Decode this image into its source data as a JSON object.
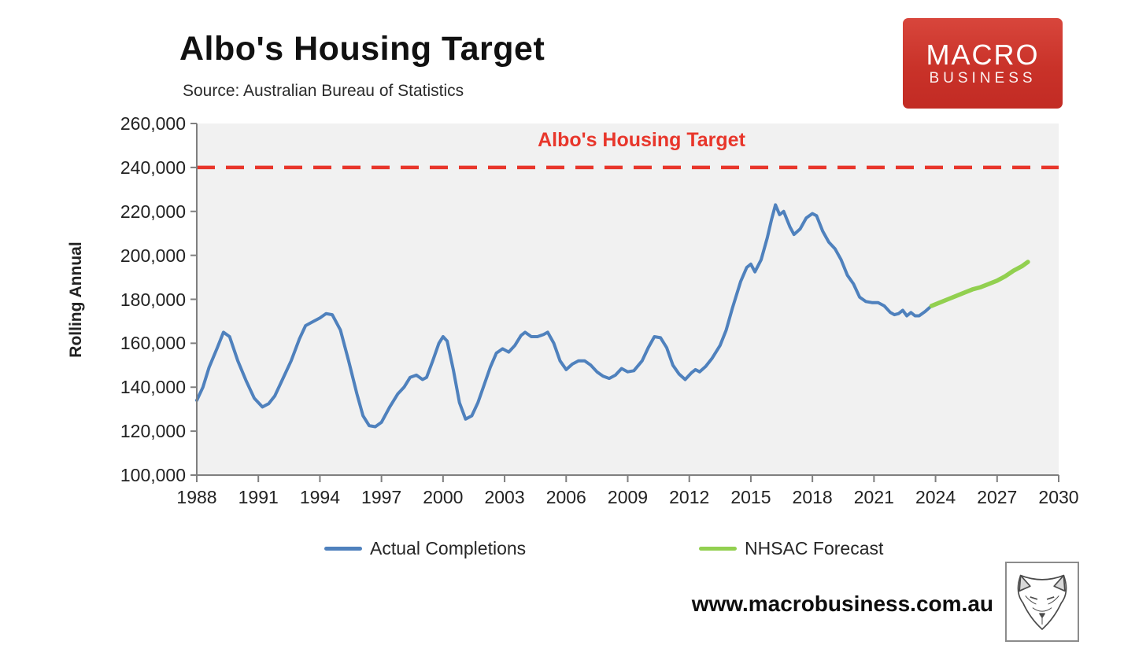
{
  "header": {
    "title": "Albo's Housing Target",
    "source": "Source: Australian Bureau of Statistics"
  },
  "logo": {
    "line1": "MACRO",
    "line2": "BUSINESS",
    "bg_color": "#c93229",
    "text_color": "#ffffff"
  },
  "footer": {
    "website": "www.macrobusiness.com.au"
  },
  "chart_data": {
    "type": "line",
    "ylabel": "Rolling Annual",
    "xlabel": "",
    "ylim": [
      100000,
      260000
    ],
    "xlim": [
      1988,
      2030
    ],
    "grid": false,
    "plot_bg": "#f1f1f1",
    "axis_color": "#7f7f7f",
    "y_ticks": [
      {
        "value": 100000,
        "label": "100,000"
      },
      {
        "value": 120000,
        "label": "120,000"
      },
      {
        "value": 140000,
        "label": "140,000"
      },
      {
        "value": 160000,
        "label": "160,000"
      },
      {
        "value": 180000,
        "label": "180,000"
      },
      {
        "value": 200000,
        "label": "200,000"
      },
      {
        "value": 220000,
        "label": "220,000"
      },
      {
        "value": 240000,
        "label": "240,000"
      },
      {
        "value": 260000,
        "label": "260,000"
      }
    ],
    "x_ticks": [
      {
        "value": 1988,
        "label": "1988"
      },
      {
        "value": 1991,
        "label": "1991"
      },
      {
        "value": 1994,
        "label": "1994"
      },
      {
        "value": 1997,
        "label": "1997"
      },
      {
        "value": 2000,
        "label": "2000"
      },
      {
        "value": 2003,
        "label": "2003"
      },
      {
        "value": 2006,
        "label": "2006"
      },
      {
        "value": 2009,
        "label": "2009"
      },
      {
        "value": 2012,
        "label": "2012"
      },
      {
        "value": 2015,
        "label": "2015"
      },
      {
        "value": 2018,
        "label": "2018"
      },
      {
        "value": 2021,
        "label": "2021"
      },
      {
        "value": 2024,
        "label": "2024"
      },
      {
        "value": 2027,
        "label": "2027"
      },
      {
        "value": 2030,
        "label": "2030"
      }
    ],
    "target_line": {
      "label": "Albo's Housing Target",
      "value": 240000,
      "color": "#e8362b",
      "style": "dashed"
    },
    "series": [
      {
        "name": "Actual Completions",
        "color": "#4f81bd",
        "points": [
          [
            1988.0,
            134000
          ],
          [
            1988.3,
            140000
          ],
          [
            1988.6,
            149000
          ],
          [
            1989.0,
            158000
          ],
          [
            1989.3,
            165000
          ],
          [
            1989.6,
            163000
          ],
          [
            1990.0,
            152000
          ],
          [
            1990.4,
            143000
          ],
          [
            1990.8,
            135000
          ],
          [
            1991.2,
            131000
          ],
          [
            1991.5,
            132500
          ],
          [
            1991.8,
            136000
          ],
          [
            1992.2,
            144000
          ],
          [
            1992.6,
            152000
          ],
          [
            1993.0,
            162000
          ],
          [
            1993.3,
            168000
          ],
          [
            1993.7,
            170000
          ],
          [
            1994.0,
            171500
          ],
          [
            1994.3,
            173500
          ],
          [
            1994.6,
            173000
          ],
          [
            1995.0,
            166000
          ],
          [
            1995.4,
            152000
          ],
          [
            1995.8,
            137000
          ],
          [
            1996.1,
            127000
          ],
          [
            1996.4,
            122500
          ],
          [
            1996.7,
            122000
          ],
          [
            1997.0,
            124000
          ],
          [
            1997.4,
            131000
          ],
          [
            1997.8,
            137000
          ],
          [
            1998.1,
            140000
          ],
          [
            1998.4,
            144500
          ],
          [
            1998.7,
            145500
          ],
          [
            1999.0,
            143500
          ],
          [
            1999.2,
            144500
          ],
          [
            1999.5,
            152000
          ],
          [
            1999.8,
            160000
          ],
          [
            2000.0,
            163000
          ],
          [
            2000.2,
            161000
          ],
          [
            2000.5,
            148000
          ],
          [
            2000.8,
            133000
          ],
          [
            2001.1,
            125500
          ],
          [
            2001.4,
            127000
          ],
          [
            2001.7,
            133000
          ],
          [
            2002.0,
            141000
          ],
          [
            2002.3,
            149000
          ],
          [
            2002.6,
            155500
          ],
          [
            2002.9,
            157500
          ],
          [
            2003.2,
            156000
          ],
          [
            2003.5,
            159000
          ],
          [
            2003.8,
            163500
          ],
          [
            2004.0,
            165000
          ],
          [
            2004.3,
            163000
          ],
          [
            2004.6,
            163000
          ],
          [
            2004.9,
            164000
          ],
          [
            2005.1,
            165000
          ],
          [
            2005.4,
            160000
          ],
          [
            2005.7,
            152000
          ],
          [
            2006.0,
            148000
          ],
          [
            2006.3,
            150500
          ],
          [
            2006.6,
            152000
          ],
          [
            2006.9,
            152000
          ],
          [
            2007.2,
            150000
          ],
          [
            2007.5,
            147000
          ],
          [
            2007.8,
            145000
          ],
          [
            2008.1,
            144000
          ],
          [
            2008.4,
            145500
          ],
          [
            2008.7,
            148500
          ],
          [
            2009.0,
            147000
          ],
          [
            2009.3,
            147500
          ],
          [
            2009.7,
            152000
          ],
          [
            2010.0,
            158000
          ],
          [
            2010.3,
            163000
          ],
          [
            2010.6,
            162500
          ],
          [
            2010.9,
            158000
          ],
          [
            2011.2,
            150000
          ],
          [
            2011.5,
            146000
          ],
          [
            2011.8,
            143500
          ],
          [
            2012.1,
            146500
          ],
          [
            2012.3,
            148000
          ],
          [
            2012.5,
            147000
          ],
          [
            2012.8,
            149500
          ],
          [
            2013.1,
            153000
          ],
          [
            2013.5,
            159000
          ],
          [
            2013.8,
            166000
          ],
          [
            2014.1,
            176000
          ],
          [
            2014.5,
            188000
          ],
          [
            2014.8,
            194500
          ],
          [
            2015.0,
            196000
          ],
          [
            2015.2,
            192500
          ],
          [
            2015.5,
            198000
          ],
          [
            2015.8,
            208000
          ],
          [
            2016.0,
            216000
          ],
          [
            2016.2,
            223000
          ],
          [
            2016.4,
            218500
          ],
          [
            2016.6,
            220000
          ],
          [
            2016.9,
            213000
          ],
          [
            2017.1,
            209500
          ],
          [
            2017.4,
            212000
          ],
          [
            2017.7,
            217000
          ],
          [
            2018.0,
            219000
          ],
          [
            2018.2,
            218000
          ],
          [
            2018.5,
            211000
          ],
          [
            2018.8,
            206000
          ],
          [
            2019.1,
            203000
          ],
          [
            2019.4,
            198000
          ],
          [
            2019.7,
            191000
          ],
          [
            2020.0,
            187000
          ],
          [
            2020.3,
            181000
          ],
          [
            2020.6,
            179000
          ],
          [
            2020.9,
            178500
          ],
          [
            2021.2,
            178500
          ],
          [
            2021.5,
            177000
          ],
          [
            2021.8,
            174000
          ],
          [
            2022.0,
            173000
          ],
          [
            2022.2,
            173500
          ],
          [
            2022.4,
            175000
          ],
          [
            2022.6,
            172500
          ],
          [
            2022.8,
            174000
          ],
          [
            2023.0,
            172500
          ],
          [
            2023.2,
            172500
          ],
          [
            2023.5,
            174500
          ],
          [
            2023.8,
            177000
          ]
        ]
      },
      {
        "name": "NHSAC Forecast",
        "color": "#92d050",
        "points": [
          [
            2023.8,
            177000
          ],
          [
            2024.2,
            178500
          ],
          [
            2024.6,
            180000
          ],
          [
            2025.0,
            181500
          ],
          [
            2025.4,
            183000
          ],
          [
            2025.8,
            184500
          ],
          [
            2026.2,
            185500
          ],
          [
            2026.6,
            187000
          ],
          [
            2027.0,
            188500
          ],
          [
            2027.4,
            190500
          ],
          [
            2027.8,
            193000
          ],
          [
            2028.2,
            195000
          ],
          [
            2028.5,
            197000
          ]
        ]
      }
    ]
  }
}
